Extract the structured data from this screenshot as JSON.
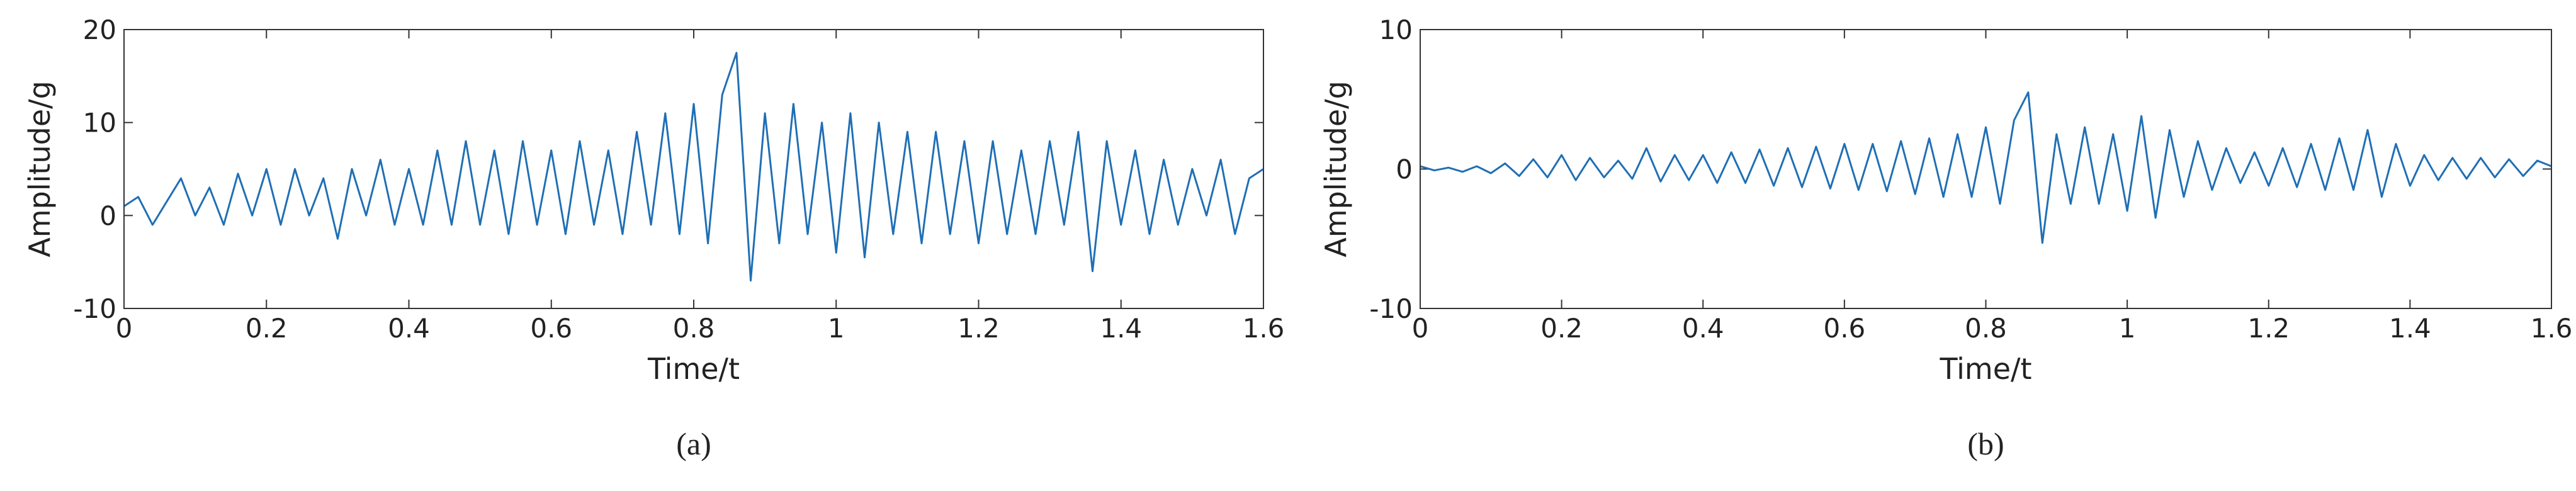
{
  "chart_data": [
    {
      "type": "line",
      "caption": "(a)",
      "x_label": "Time/t",
      "y_label": "Amplitude/g",
      "x": [
        0,
        0.02,
        0.04,
        0.06,
        0.08,
        0.1,
        0.12,
        0.14,
        0.16,
        0.18,
        0.2,
        0.22,
        0.24,
        0.26,
        0.28,
        0.3,
        0.32,
        0.34,
        0.36,
        0.38,
        0.4,
        0.42,
        0.44,
        0.46,
        0.48,
        0.5,
        0.52,
        0.54,
        0.56,
        0.58,
        0.6,
        0.62,
        0.64,
        0.66,
        0.68,
        0.7,
        0.72,
        0.74,
        0.76,
        0.78,
        0.8,
        0.82,
        0.84,
        0.86,
        0.88,
        0.9,
        0.92,
        0.94,
        0.96,
        0.98,
        1,
        1.02,
        1.04,
        1.06,
        1.08,
        1.1,
        1.12,
        1.14,
        1.16,
        1.18,
        1.2,
        1.22,
        1.24,
        1.26,
        1.28,
        1.3,
        1.32,
        1.34,
        1.36,
        1.38,
        1.4,
        1.42,
        1.44,
        1.46,
        1.48,
        1.5,
        1.52,
        1.54,
        1.56,
        1.58,
        1.6
      ],
      "series": [
        {
          "color": "#1f6fb5",
          "values": [
            1,
            2,
            -1,
            1.5,
            4,
            0,
            3,
            -1,
            4.5,
            0,
            5,
            -1,
            5,
            0,
            4,
            -2.5,
            5,
            0,
            6,
            -1,
            5,
            -1,
            7,
            -1,
            8,
            -1,
            7,
            -2,
            8,
            -1,
            7,
            -2,
            8,
            -1,
            7,
            -2,
            9,
            -1,
            11,
            -2,
            12,
            -3,
            13,
            17.5,
            -7,
            11,
            -3,
            12,
            -2,
            10,
            -4,
            11,
            -4.5,
            10,
            -2,
            9,
            -3,
            9,
            -2,
            8,
            -3,
            8,
            -2,
            7,
            -2,
            8,
            -1,
            9,
            -6,
            8,
            -1,
            7,
            -2,
            6,
            -1,
            5,
            0,
            6,
            -2,
            4,
            5
          ]
        }
      ],
      "xlim": [
        0,
        1.6
      ],
      "xticks": [
        0,
        0.2,
        0.4,
        0.6,
        0.8,
        1,
        1.2,
        1.4,
        1.6
      ],
      "ylim": [
        -10,
        20
      ],
      "yticks": [
        -10,
        0,
        10,
        20
      ]
    },
    {
      "type": "line",
      "caption": "(b)",
      "x_label": "Time/t",
      "y_label": "Amplitude/g",
      "x": [
        0,
        0.02,
        0.04,
        0.06,
        0.08,
        0.1,
        0.12,
        0.14,
        0.16,
        0.18,
        0.2,
        0.22,
        0.24,
        0.26,
        0.28,
        0.3,
        0.32,
        0.34,
        0.36,
        0.38,
        0.4,
        0.42,
        0.44,
        0.46,
        0.48,
        0.5,
        0.52,
        0.54,
        0.56,
        0.58,
        0.6,
        0.62,
        0.64,
        0.66,
        0.68,
        0.7,
        0.72,
        0.74,
        0.76,
        0.78,
        0.8,
        0.82,
        0.84,
        0.86,
        0.88,
        0.9,
        0.92,
        0.94,
        0.96,
        0.98,
        1,
        1.02,
        1.04,
        1.06,
        1.08,
        1.1,
        1.12,
        1.14,
        1.16,
        1.18,
        1.2,
        1.22,
        1.24,
        1.26,
        1.28,
        1.3,
        1.32,
        1.34,
        1.36,
        1.38,
        1.4,
        1.42,
        1.44,
        1.46,
        1.48,
        1.5,
        1.52,
        1.54,
        1.56,
        1.58,
        1.6
      ],
      "series": [
        {
          "color": "#1f6fb5",
          "values": [
            0.2,
            -0.1,
            0.1,
            -0.2,
            0.2,
            -0.3,
            0.4,
            -0.5,
            0.7,
            -0.6,
            1,
            -0.8,
            0.8,
            -0.6,
            0.6,
            -0.7,
            1.5,
            -0.9,
            1,
            -0.8,
            1,
            -1,
            1.2,
            -1,
            1.4,
            -1.2,
            1.5,
            -1.3,
            1.6,
            -1.4,
            1.8,
            -1.5,
            1.8,
            -1.6,
            2,
            -1.8,
            2.2,
            -2,
            2.5,
            -2,
            3,
            -2.5,
            3.5,
            5.5,
            -5.3,
            2.5,
            -2.5,
            3,
            -2.5,
            2.5,
            -3,
            3.8,
            -3.5,
            2.8,
            -2,
            2,
            -1.5,
            1.5,
            -1,
            1.2,
            -1.2,
            1.5,
            -1.3,
            1.8,
            -1.5,
            2.2,
            -1.5,
            2.8,
            -2,
            1.8,
            -1.2,
            1,
            -0.8,
            0.8,
            -0.7,
            0.8,
            -0.6,
            0.7,
            -0.5,
            0.6,
            0.2
          ]
        }
      ],
      "xlim": [
        0,
        1.6
      ],
      "xticks": [
        0,
        0.2,
        0.4,
        0.6,
        0.8,
        1,
        1.2,
        1.4,
        1.6
      ],
      "ylim": [
        -10,
        10
      ],
      "yticks": [
        -10,
        0,
        10
      ]
    }
  ]
}
